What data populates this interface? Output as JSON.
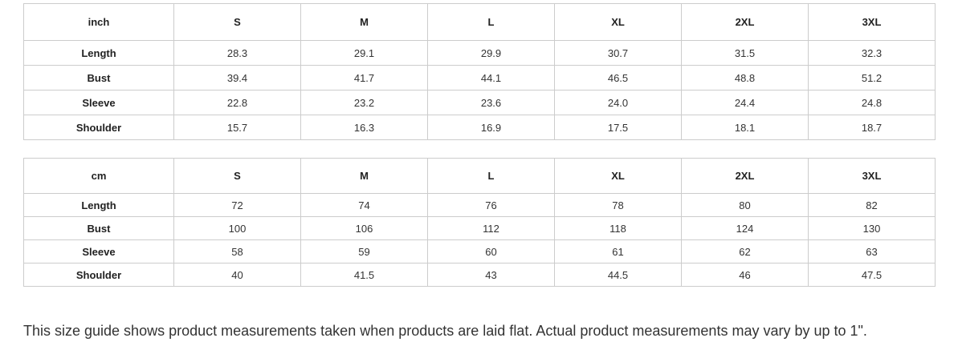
{
  "tables": [
    {
      "unit": "inch",
      "sizes": [
        "S",
        "M",
        "L",
        "XL",
        "2XL",
        "3XL"
      ],
      "rows": [
        {
          "label": "Length",
          "values": [
            "28.3",
            "29.1",
            "29.9",
            "30.7",
            "31.5",
            "32.3"
          ]
        },
        {
          "label": "Bust",
          "values": [
            "39.4",
            "41.7",
            "44.1",
            "46.5",
            "48.8",
            "51.2"
          ]
        },
        {
          "label": "Sleeve",
          "values": [
            "22.8",
            "23.2",
            "23.6",
            "24.0",
            "24.4",
            "24.8"
          ]
        },
        {
          "label": "Shoulder",
          "values": [
            "15.7",
            "16.3",
            "16.9",
            "17.5",
            "18.1",
            "18.7"
          ]
        }
      ]
    },
    {
      "unit": "cm",
      "sizes": [
        "S",
        "M",
        "L",
        "XL",
        "2XL",
        "3XL"
      ],
      "rows": [
        {
          "label": "Length",
          "values": [
            "72",
            "74",
            "76",
            "78",
            "80",
            "82"
          ]
        },
        {
          "label": "Bust",
          "values": [
            "100",
            "106",
            "112",
            "118",
            "124",
            "130"
          ]
        },
        {
          "label": "Sleeve",
          "values": [
            "58",
            "59",
            "60",
            "61",
            "62",
            "63"
          ]
        },
        {
          "label": "Shoulder",
          "values": [
            "40",
            "41.5",
            "43",
            "44.5",
            "46",
            "47.5"
          ]
        }
      ]
    }
  ],
  "note": "This size guide shows product measurements taken when products are laid flat. Actual product measurements may vary by up to 1\"."
}
